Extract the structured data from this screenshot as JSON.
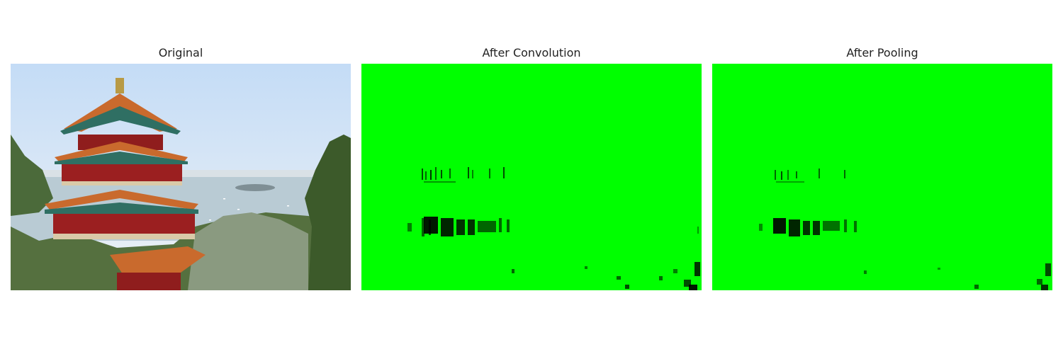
{
  "figure": {
    "panels": [
      {
        "title": "Original"
      },
      {
        "title": "After Convolution"
      },
      {
        "title": "After Pooling"
      }
    ]
  },
  "colors": {
    "background": "#ffffff",
    "sky_top": "#c8def5",
    "sky_bottom": "#eef3f7",
    "water": "#b7c9d3",
    "roof_orange": "#c96a2d",
    "roof_teal": "#2f6f63",
    "pillar_red": "#9b1f20",
    "foliage": "#3f5a2c",
    "feature_map_green": "#00ff00",
    "feature_map_dark": "#000000"
  }
}
